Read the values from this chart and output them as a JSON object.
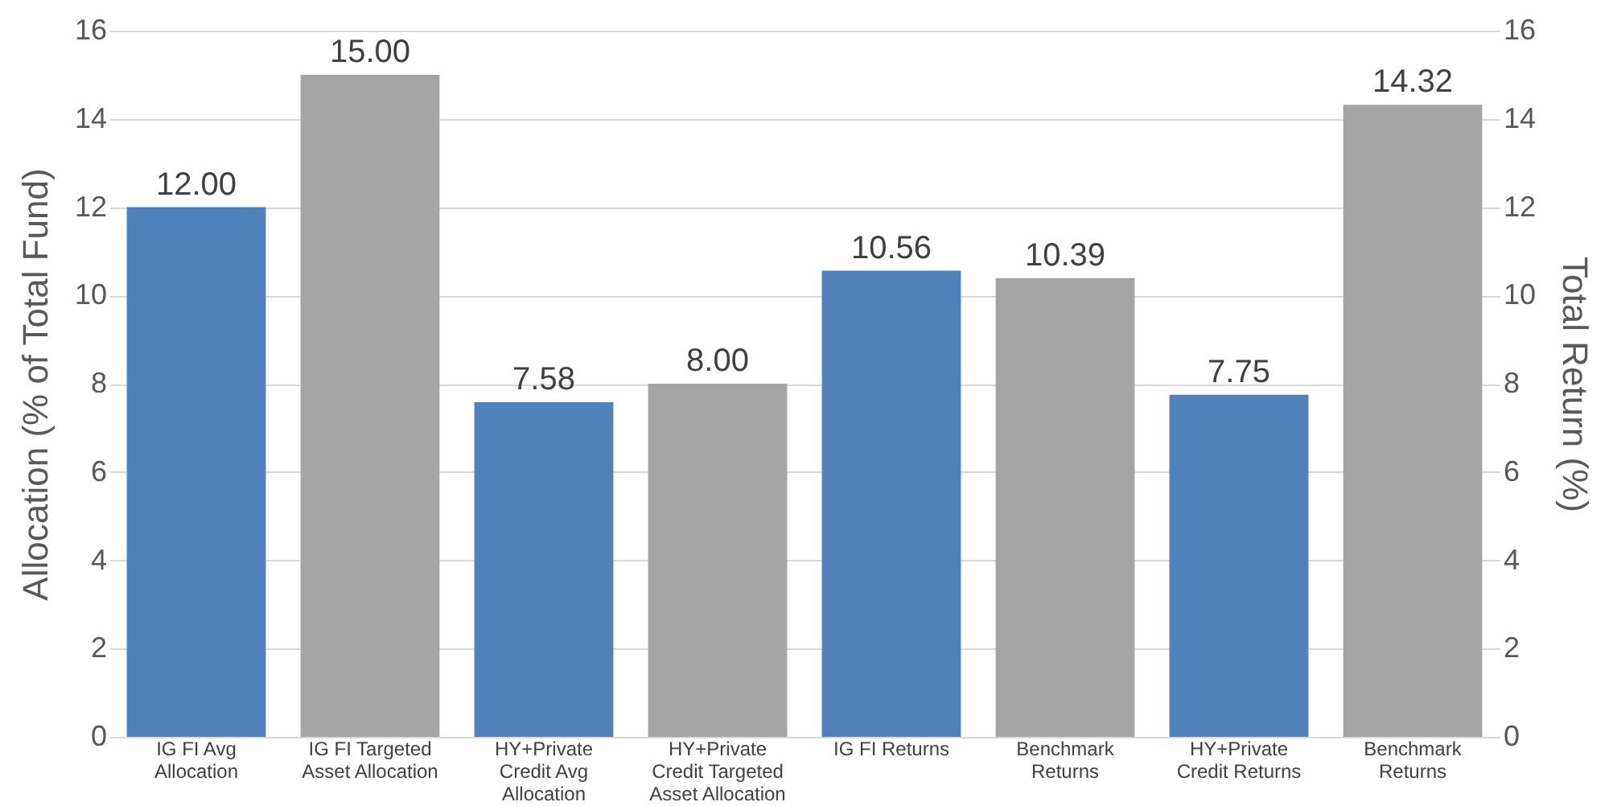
{
  "chart_data": {
    "type": "bar",
    "ylabel": "Allocation (% of Total Fund)",
    "y2label": "Total Return (%)",
    "categories": [
      "IG FI Avg Allocation",
      "IG FI Targeted Asset Allocation",
      "HY+Private Credit Avg Allocation",
      "HY+Private Credit Targeted Asset Allocation",
      "IG FI Returns",
      "Benchmark Returns",
      "HY+Private Credit Returns",
      "Benchmark Returns"
    ],
    "series": [
      {
        "colors": [
          "#4f81bd",
          "#a5a5a5",
          "#4f81bd",
          "#a5a5a5",
          null,
          null,
          null,
          null
        ],
        "values": [
          12.0,
          15.0,
          7.58,
          8.0,
          null,
          null,
          null,
          null
        ],
        "value_labels": [
          "12.00",
          "15.00",
          "7.58",
          "8.00",
          null,
          null,
          null,
          null
        ]
      },
      {
        "axis": "y2",
        "colors": [
          null,
          null,
          null,
          null,
          "#4f81bd",
          "#a5a5a5",
          "#4f81bd",
          "#a5a5a5"
        ],
        "values": [
          null,
          null,
          null,
          null,
          10.56,
          10.39,
          7.75,
          14.32
        ],
        "value_labels": [
          null,
          null,
          null,
          null,
          "10.56",
          "10.39",
          "7.75",
          "14.32"
        ]
      }
    ],
    "ylim": [
      0,
      16
    ],
    "yticks": [
      0,
      2,
      4,
      6,
      8,
      10,
      12,
      14,
      16
    ],
    "y2lim": [
      0,
      16
    ],
    "y2ticks": [
      0,
      2,
      4,
      6,
      8,
      10,
      12,
      14,
      16
    ],
    "grid": "y"
  }
}
